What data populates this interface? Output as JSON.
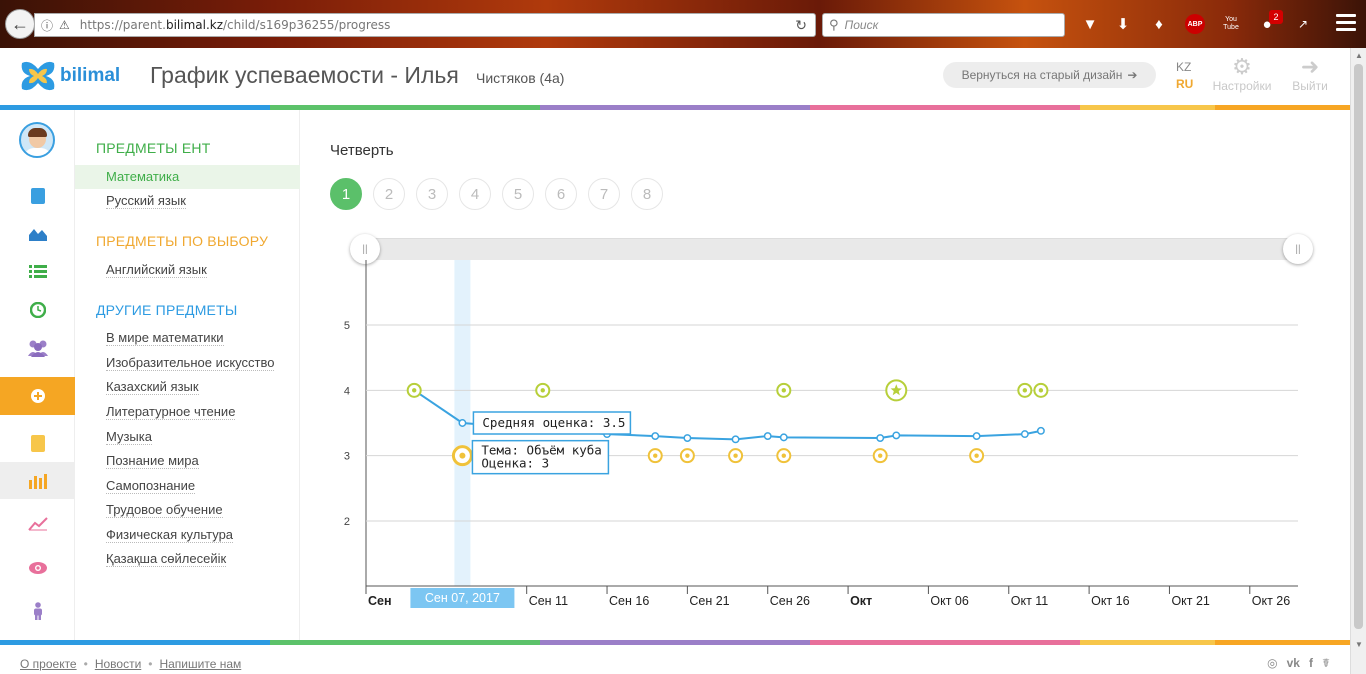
{
  "browser": {
    "url_prefix": "https://parent.",
    "url_domain": "bilimal.kz",
    "url_path": "/child/s169p36255/progress",
    "search_placeholder": "Поиск",
    "abp_label": "ABP",
    "yt_label": "You Tube",
    "notif_count": "2"
  },
  "header": {
    "logo_text": "bilimal",
    "title": "График успеваемости - Илья",
    "subtitle": "Чистяков (4а)",
    "old_design_label": "Вернуться на старый дизайн",
    "lang_kz": "KZ",
    "lang_ru": "RU",
    "settings_label": "Настройки",
    "logout_label": "Выйти",
    "stripe_colors": [
      "#2d9be2",
      "#2d9be2",
      "#5cc26a",
      "#5cc26a",
      "#9b7fc8",
      "#9b7fc8",
      "#e8709b",
      "#e8709b",
      "#f7c64a",
      "#f7a623"
    ]
  },
  "sidebar": {
    "sections": [
      {
        "title": "ПРЕДМЕТЫ ЕНТ",
        "color": "#3fae49",
        "items": [
          "Математика",
          "Русский язык"
        ]
      },
      {
        "title": "ПРЕДМЕТЫ ПО ВЫБОРУ",
        "color": "#f0a830",
        "items": [
          "Английский язык"
        ]
      },
      {
        "title": "ДРУГИЕ ПРЕДМЕТЫ",
        "color": "#2d9be2",
        "items": [
          "В мире математики",
          "Изобразительное искусство",
          "Казахский язык",
          "Литературное чтение",
          "Музыка",
          "Познание мира",
          "Самопознание",
          "Трудовое обучение",
          "Физическая культура",
          "Қазақша сөйлесейік"
        ]
      }
    ],
    "active_item": "Математика"
  },
  "main": {
    "quarter_label": "Четверть",
    "quarters": [
      "1",
      "2",
      "3",
      "4",
      "5",
      "6",
      "7",
      "8"
    ],
    "active_quarter": "1"
  },
  "chart_data": {
    "type": "line",
    "ylim": [
      1,
      5
    ],
    "y_ticks": [
      2,
      3,
      4,
      5
    ],
    "x_range": [
      "2017-09-01",
      "2017-10-29"
    ],
    "x_ticks": [
      {
        "date": "2017-09-01",
        "label": "Сен",
        "bold": true
      },
      {
        "date": "2017-09-11",
        "label": "Сен 11"
      },
      {
        "date": "2017-09-16",
        "label": "Сен 16"
      },
      {
        "date": "2017-09-21",
        "label": "Сен 21"
      },
      {
        "date": "2017-09-26",
        "label": "Сен 26"
      },
      {
        "date": "2017-10-01",
        "label": "Окт",
        "bold": true
      },
      {
        "date": "2017-10-06",
        "label": "Окт 06"
      },
      {
        "date": "2017-10-11",
        "label": "Окт 11"
      },
      {
        "date": "2017-10-16",
        "label": "Окт 16"
      },
      {
        "date": "2017-10-21",
        "label": "Окт 21"
      },
      {
        "date": "2017-10-26",
        "label": "Окт 26"
      }
    ],
    "series": [
      {
        "kind": "average",
        "color": "#3aa3e0",
        "points": [
          [
            "2017-09-04",
            4.0
          ],
          [
            "2017-09-07",
            3.5
          ],
          [
            "2017-09-16",
            3.33
          ],
          [
            "2017-09-19",
            3.3
          ],
          [
            "2017-09-21",
            3.27
          ],
          [
            "2017-09-24",
            3.25
          ],
          [
            "2017-09-26",
            3.3
          ],
          [
            "2017-09-27",
            3.28
          ],
          [
            "2017-10-03",
            3.27
          ],
          [
            "2017-10-04",
            3.31
          ],
          [
            "2017-10-09",
            3.3
          ],
          [
            "2017-10-12",
            3.33
          ],
          [
            "2017-10-13",
            3.38
          ]
        ]
      },
      {
        "kind": "grade-4",
        "color": "#b7cf3a",
        "points": [
          [
            "2017-09-04",
            4
          ],
          [
            "2017-09-12",
            4
          ],
          [
            "2017-09-27",
            4
          ],
          [
            "2017-10-12",
            4
          ],
          [
            "2017-10-13",
            4
          ]
        ],
        "star_point": [
          "2017-10-04",
          4
        ]
      },
      {
        "kind": "grade-3",
        "color": "#f0c23a",
        "points": [
          [
            "2017-09-07",
            3
          ],
          [
            "2017-09-19",
            3
          ],
          [
            "2017-09-21",
            3
          ],
          [
            "2017-09-24",
            3
          ],
          [
            "2017-09-27",
            3
          ],
          [
            "2017-10-03",
            3
          ],
          [
            "2017-10-09",
            3
          ]
        ]
      }
    ],
    "tooltip_avg": "Средняя оценка: 3.5",
    "tooltip_topic": "Тема: Объём куба",
    "tooltip_grade": "Оценка: 3",
    "crosshair_label": "Сен 07, 2017"
  },
  "footer": {
    "links": [
      "О проекте",
      "Новости",
      "Напишите нам"
    ]
  }
}
